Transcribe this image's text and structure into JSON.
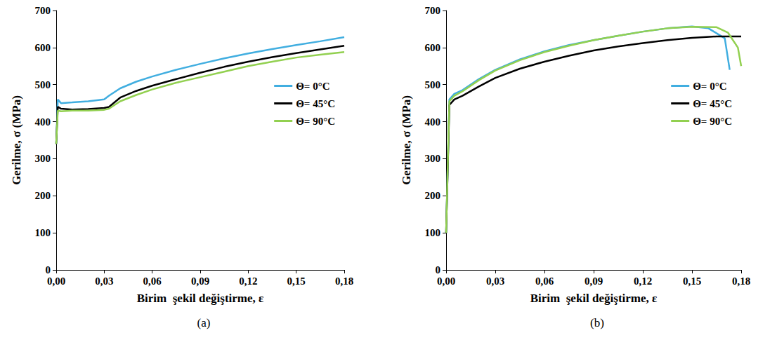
{
  "chart_data": [
    {
      "type": "line",
      "title": "(a)",
      "x_label": "Birim  şekil değiştirme, ε",
      "y_label": "Gerilme, σ (MPa)",
      "xlim": [
        0,
        0.18
      ],
      "xticks": [
        {
          "value": 0,
          "label": "0,00"
        },
        {
          "value": 0.03,
          "label": "0,03"
        },
        {
          "value": 0.06,
          "label": "0,06"
        },
        {
          "value": 0.09,
          "label": "0,09"
        },
        {
          "value": 0.12,
          "label": "0,12"
        },
        {
          "value": 0.15,
          "label": "0,15"
        },
        {
          "value": 0.18,
          "label": "0,18"
        }
      ],
      "ylim": [
        0,
        700
      ],
      "yticks": [
        0,
        100,
        200,
        300,
        400,
        500,
        600,
        700
      ],
      "grid": false,
      "legend": "right",
      "series": [
        {
          "name": "Θ= 0°C",
          "color": "#41aee0",
          "x": [
            0,
            0.001,
            0.003,
            0.01,
            0.02,
            0.03,
            0.033,
            0.04,
            0.05,
            0.06,
            0.075,
            0.09,
            0.105,
            0.12,
            0.135,
            0.15,
            0.165,
            0.18
          ],
          "values": [
            340,
            460,
            450,
            452,
            455,
            460,
            470,
            490,
            508,
            522,
            540,
            556,
            571,
            584,
            596,
            607,
            617,
            628
          ]
        },
        {
          "name": "Θ= 45°C",
          "color": "#000000",
          "x": [
            0,
            0.001,
            0.003,
            0.01,
            0.02,
            0.03,
            0.033,
            0.04,
            0.05,
            0.06,
            0.075,
            0.09,
            0.105,
            0.12,
            0.135,
            0.15,
            0.165,
            0.18
          ],
          "values": [
            340,
            440,
            435,
            433,
            434,
            437,
            440,
            465,
            483,
            497,
            515,
            532,
            548,
            562,
            574,
            585,
            595,
            605
          ]
        },
        {
          "name": "Θ= 90°C",
          "color": "#92d050",
          "x": [
            0,
            0.001,
            0.003,
            0.01,
            0.02,
            0.03,
            0.033,
            0.04,
            0.05,
            0.06,
            0.075,
            0.09,
            0.105,
            0.12,
            0.135,
            0.15,
            0.165,
            0.18
          ],
          "values": [
            340,
            430,
            428,
            430,
            430,
            432,
            435,
            455,
            472,
            487,
            505,
            520,
            535,
            550,
            562,
            573,
            581,
            588
          ]
        }
      ]
    },
    {
      "type": "line",
      "title": "(b)",
      "x_label": "Birim  şekil değiştirme, ε",
      "y_label": "Gerilme, σ (MPa)",
      "xlim": [
        0,
        0.18
      ],
      "xticks": [
        {
          "value": 0,
          "label": "0,00"
        },
        {
          "value": 0.03,
          "label": "0,03"
        },
        {
          "value": 0.06,
          "label": "0,06"
        },
        {
          "value": 0.09,
          "label": "0,09"
        },
        {
          "value": 0.12,
          "label": "0,12"
        },
        {
          "value": 0.15,
          "label": "0,15"
        },
        {
          "value": 0.18,
          "label": "0,18"
        }
      ],
      "ylim": [
        0,
        700
      ],
      "yticks": [
        0,
        100,
        200,
        300,
        400,
        500,
        600,
        700
      ],
      "grid": false,
      "legend": "right",
      "series": [
        {
          "name": "Θ= 0°C",
          "color": "#41aee0",
          "x": [
            0,
            0.002,
            0.005,
            0.01,
            0.02,
            0.03,
            0.045,
            0.06,
            0.075,
            0.09,
            0.105,
            0.12,
            0.135,
            0.15,
            0.16,
            0.17,
            0.173
          ],
          "values": [
            100,
            460,
            475,
            485,
            515,
            540,
            568,
            590,
            607,
            620,
            632,
            643,
            652,
            657,
            652,
            625,
            540
          ]
        },
        {
          "name": "Θ= 45°C",
          "color": "#000000",
          "x": [
            0,
            0.002,
            0.005,
            0.01,
            0.02,
            0.03,
            0.045,
            0.06,
            0.075,
            0.09,
            0.105,
            0.12,
            0.135,
            0.15,
            0.165,
            0.18
          ],
          "values": [
            100,
            445,
            460,
            470,
            495,
            518,
            543,
            562,
            578,
            592,
            603,
            612,
            620,
            626,
            630,
            630
          ]
        },
        {
          "name": "Θ= 90°C",
          "color": "#92d050",
          "x": [
            0,
            0.002,
            0.005,
            0.01,
            0.02,
            0.03,
            0.045,
            0.06,
            0.075,
            0.09,
            0.105,
            0.12,
            0.135,
            0.15,
            0.165,
            0.172,
            0.178,
            0.18
          ],
          "values": [
            100,
            455,
            470,
            482,
            512,
            538,
            566,
            588,
            605,
            620,
            632,
            643,
            652,
            656,
            655,
            640,
            600,
            550
          ]
        }
      ]
    }
  ]
}
